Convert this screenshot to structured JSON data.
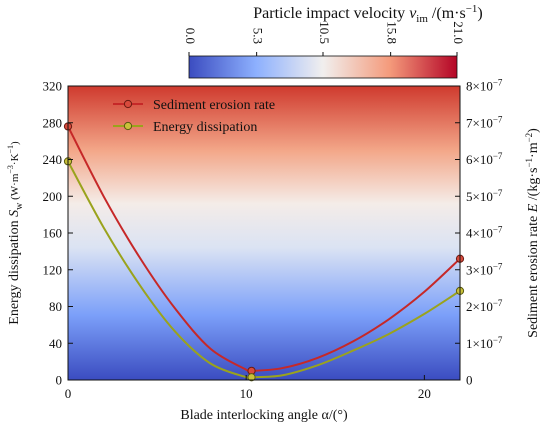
{
  "chart_data": {
    "type": "line",
    "x": [
      0,
      10.3,
      22
    ],
    "series": [
      {
        "name": "Sediment erosion rate",
        "axis": "right",
        "color": "#c62828",
        "values": [
          6.9e-07,
          2.5e-08,
          3.3e-07
        ],
        "curve": [
          [
            0,
            6.9e-07
          ],
          [
            2,
            5e-07
          ],
          [
            4,
            3.35e-07
          ],
          [
            6,
            1.95e-07
          ],
          [
            8,
            8.5e-08
          ],
          [
            10,
            2.8e-08
          ],
          [
            10.3,
            2.5e-08
          ],
          [
            12,
            3.2e-08
          ],
          [
            14,
            6e-08
          ],
          [
            16,
            1.05e-07
          ],
          [
            18,
            1.65e-07
          ],
          [
            20,
            2.4e-07
          ],
          [
            22,
            3.3e-07
          ]
        ]
      },
      {
        "name": "Energy dissipation",
        "axis": "left",
        "color": "#9aa31c",
        "values": [
          238,
          3,
          97
        ],
        "curve": [
          [
            0,
            238
          ],
          [
            2,
            166
          ],
          [
            4,
            104
          ],
          [
            6,
            53
          ],
          [
            8,
            18
          ],
          [
            10,
            3
          ],
          [
            10.3,
            3
          ],
          [
            12,
            5
          ],
          [
            14,
            16
          ],
          [
            16,
            32
          ],
          [
            18,
            50
          ],
          [
            20,
            72
          ],
          [
            22,
            97
          ]
        ]
      }
    ],
    "xlabel": "Blade interlocking angle α/(°)",
    "xticks": [
      0,
      10,
      20
    ],
    "xlim": [
      0,
      22
    ],
    "ylabel_left": {
      "main": "Energy dissipation ",
      "sym": "S",
      "sub": "w",
      "unit": " (W·m",
      "exp1": "−3",
      "mid": "·K",
      "exp2": "−1",
      "close": ")"
    },
    "ylim_left": [
      0,
      320
    ],
    "yticks_left": [
      0,
      40,
      80,
      120,
      160,
      200,
      240,
      280,
      320
    ],
    "ylabel_right": {
      "main": "Sediment erosion rate ",
      "sym": "E",
      "unit": " /(kg·s",
      "exp1": "−1",
      "mid": "·m",
      "exp2": "−2",
      "close": ")"
    },
    "ylim_right": [
      0,
      8e-07
    ],
    "yticks_right": [
      0,
      1e-07,
      2e-07,
      3e-07,
      4e-07,
      5e-07,
      6e-07,
      7e-07,
      8e-07
    ],
    "yticks_right_labels": [
      "0",
      "1×10",
      "2×10",
      "3×10",
      "4×10",
      "5×10",
      "6×10",
      "7×10",
      "8×10"
    ],
    "yticks_right_exp": [
      "",
      "−7",
      "−7",
      "−7",
      "−7",
      "−7",
      "−7",
      "−7",
      "−7"
    ],
    "colorbar": {
      "title_main": "Particle impact velocity ",
      "title_sym": "v",
      "title_sub": "im",
      "title_unit": " /(m·s",
      "title_exp": "−1",
      "title_close": ")",
      "ticks": [
        0.0,
        5.3,
        10.5,
        15.8,
        21.0
      ],
      "tick_labels": [
        "0.0",
        "5.3",
        "10.5",
        "15.8",
        "21.0"
      ],
      "range": [
        0,
        21
      ],
      "colors": [
        "#3b4cc0",
        "#aac7fd",
        "#f5f2f0",
        "#f7b599",
        "#b40426"
      ]
    },
    "legend_position": "top-center",
    "background_gradient": "vertical blue (bottom) to red (top)"
  }
}
